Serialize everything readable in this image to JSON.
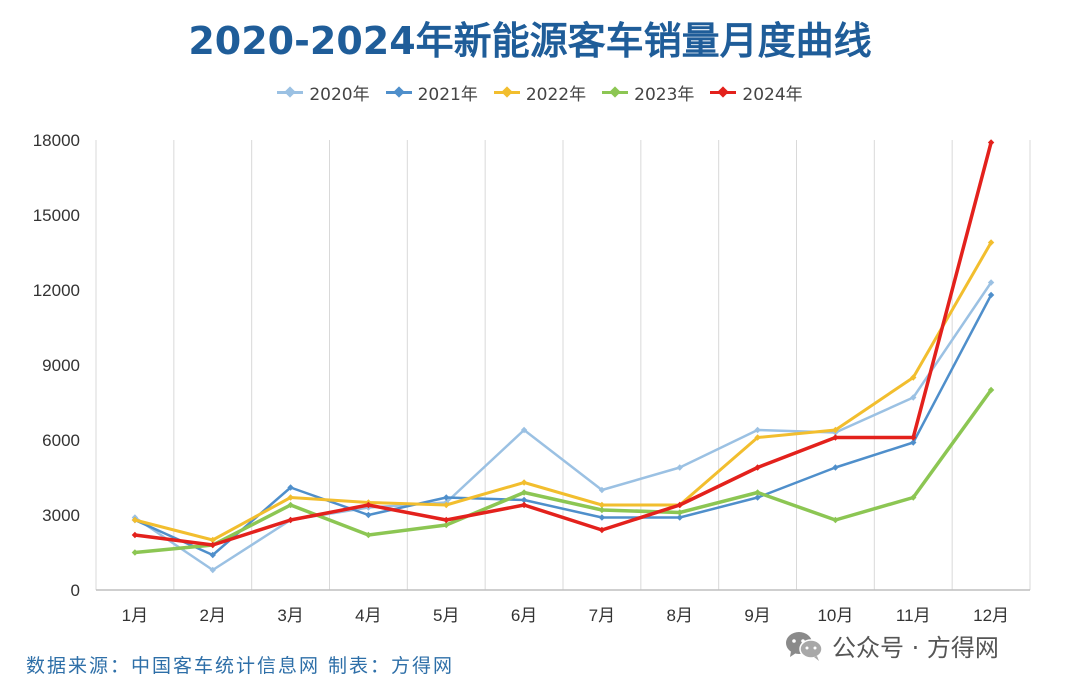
{
  "chart_data": {
    "type": "line",
    "title": "2020-2024年新能源客车销量月度曲线",
    "categories": [
      "1月",
      "2月",
      "3月",
      "4月",
      "5月",
      "6月",
      "7月",
      "8月",
      "9月",
      "10月",
      "11月",
      "12月"
    ],
    "ylim": [
      0,
      18000
    ],
    "yticks": [
      0,
      3000,
      6000,
      9000,
      12000,
      15000,
      18000
    ],
    "grid": "vertical",
    "legend_position": "top",
    "series": [
      {
        "name": "2020年",
        "color": "#9bc1e3",
        "width": 2.5,
        "values": [
          2900,
          800,
          2800,
          3300,
          3500,
          6400,
          4000,
          4900,
          6400,
          6300,
          7700,
          12300
        ]
      },
      {
        "name": "2021年",
        "color": "#4f8fcb",
        "width": 2.5,
        "values": [
          2800,
          1400,
          4100,
          3000,
          3700,
          3600,
          2900,
          2900,
          3700,
          4900,
          5900,
          11800
        ]
      },
      {
        "name": "2022年",
        "color": "#f2be2e",
        "width": 3,
        "values": [
          2800,
          2000,
          3700,
          3500,
          3400,
          4300,
          3400,
          3400,
          6100,
          6400,
          8500,
          13900
        ]
      },
      {
        "name": "2023年",
        "color": "#8cc653",
        "width": 3.5,
        "values": [
          1500,
          1800,
          3400,
          2200,
          2600,
          3900,
          3200,
          3100,
          3900,
          2800,
          3700,
          8000
        ]
      },
      {
        "name": "2024年",
        "color": "#e3211c",
        "width": 3.5,
        "values": [
          2200,
          1800,
          2800,
          3400,
          2800,
          3400,
          2400,
          3400,
          4900,
          6100,
          6100,
          17900
        ]
      }
    ]
  },
  "footer": {
    "source": "数据来源：中国客车统计信息网 制表：方得网",
    "watermark": "公众号 · 方得网"
  },
  "icons": {
    "wechat": "wechat-icon"
  }
}
